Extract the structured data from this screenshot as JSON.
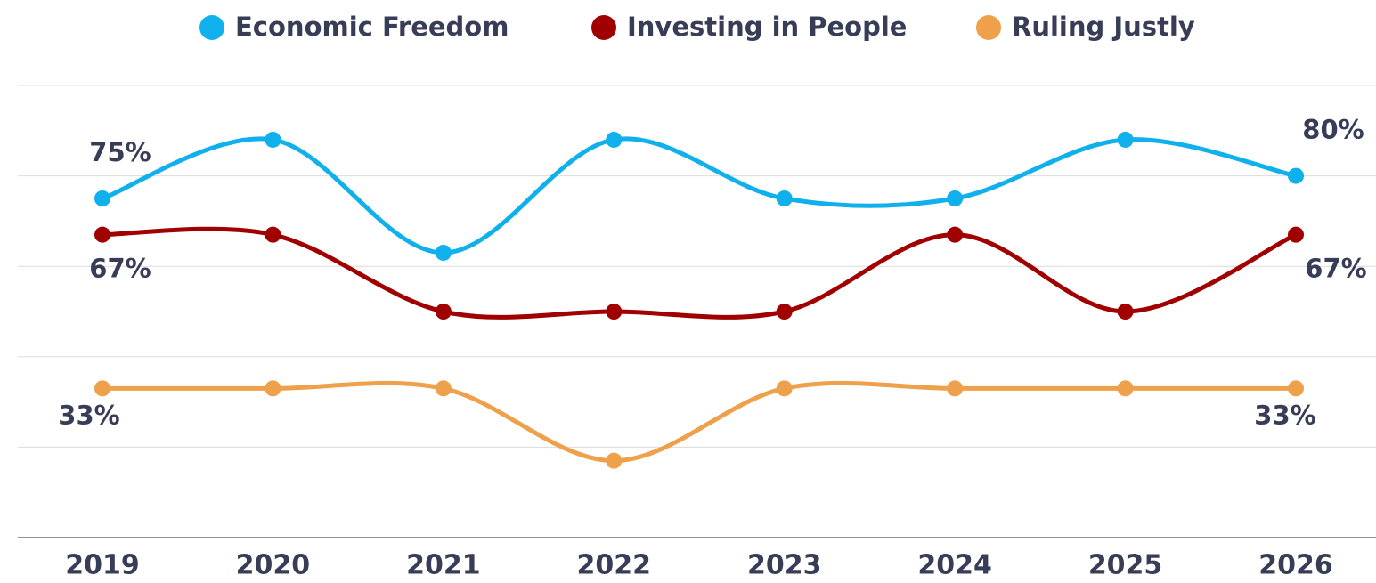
{
  "chart_data": {
    "type": "line",
    "categories": [
      "2019",
      "2020",
      "2021",
      "2022",
      "2023",
      "2024",
      "2025",
      "2026"
    ],
    "series": [
      {
        "name": "Economic Freedom",
        "color": "#0fb0ec",
        "values": [
          75,
          88,
          63,
          88,
          75,
          75,
          88,
          80
        ],
        "value_labels": [
          "75%",
          null,
          null,
          null,
          null,
          null,
          null,
          "80%"
        ]
      },
      {
        "name": "Investing in People",
        "color": "#a00000",
        "values": [
          67,
          67,
          50,
          50,
          50,
          67,
          50,
          67
        ],
        "value_labels": [
          "67%",
          null,
          null,
          null,
          null,
          null,
          null,
          "67%"
        ]
      },
      {
        "name": "Ruling Justly",
        "color": "#eea04a",
        "values": [
          33,
          33,
          33,
          17,
          33,
          33,
          33,
          33
        ],
        "value_labels": [
          "33%",
          null,
          null,
          null,
          null,
          null,
          null,
          "33%"
        ]
      }
    ],
    "ylim": [
      0,
      100
    ],
    "yticks": [
      0,
      20,
      40,
      60,
      80,
      100
    ],
    "grid": true,
    "legend": "top"
  }
}
